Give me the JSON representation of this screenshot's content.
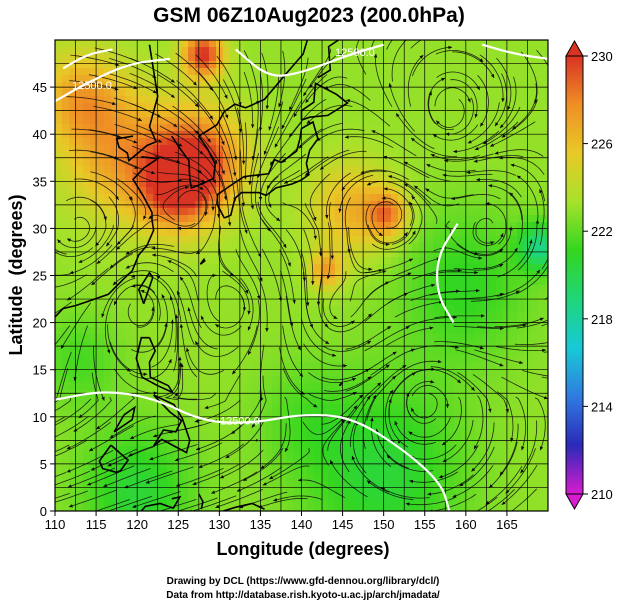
{
  "chart_data": {
    "type": "heatmap",
    "title": "GSM 06Z10Aug2023 (200.0hPa)",
    "xlabel": "Longitude (degrees)",
    "ylabel": "Latitude  (degrees)",
    "xlim": [
      110,
      170
    ],
    "ylim": [
      0,
      50
    ],
    "xticks": [
      "110",
      "115",
      "120",
      "125",
      "130",
      "135",
      "140",
      "145",
      "150",
      "155",
      "160",
      "165"
    ],
    "yticks": [
      "0",
      "5",
      "10",
      "15",
      "20",
      "25",
      "30",
      "35",
      "40",
      "45"
    ],
    "grid": true,
    "grid_step_degrees": 2.5,
    "colorbar": {
      "min": 210,
      "max": 230,
      "ticks": [
        "210",
        "214",
        "218",
        "222",
        "226",
        "230"
      ],
      "colors": [
        "#d91bd0",
        "#2a2ab8",
        "#2f7be0",
        "#18c9d6",
        "#1fd67a",
        "#33d61f",
        "#a6e22a",
        "#e9c927",
        "#ef8f25",
        "#d93323"
      ]
    },
    "temperature_field": {
      "background": 223,
      "features": [
        {
          "lon": 127.5,
          "lat": 37.0,
          "value": 229.5,
          "r": 5.5
        },
        {
          "lon": 124.5,
          "lat": 34.0,
          "value": 227.5,
          "r": 4.5
        },
        {
          "lon": 128.0,
          "lat": 48.5,
          "value": 230.0,
          "r": 2.5
        },
        {
          "lon": 118.0,
          "lat": 38.0,
          "value": 227.0,
          "r": 7.0
        },
        {
          "lon": 113.0,
          "lat": 44.0,
          "value": 226.5,
          "r": 5.0
        },
        {
          "lon": 146.0,
          "lat": 32.0,
          "value": 226.5,
          "r": 5.0
        },
        {
          "lon": 150.5,
          "lat": 31.5,
          "value": 227.5,
          "r": 2.5
        },
        {
          "lon": 143.0,
          "lat": 25.5,
          "value": 227.0,
          "r": 2.0
        },
        {
          "lon": 160.0,
          "lat": 24.0,
          "value": 221.0,
          "r": 8.0
        },
        {
          "lon": 169.0,
          "lat": 28.0,
          "value": 219.0,
          "r": 2.5
        },
        {
          "lon": 150.0,
          "lat": 4.0,
          "value": 220.5,
          "r": 10.0
        },
        {
          "lon": 120.0,
          "lat": 2.0,
          "value": 220.5,
          "r": 7.0
        },
        {
          "lon": 113.0,
          "lat": 16.0,
          "value": 221.5,
          "r": 5.0
        },
        {
          "lon": 140.0,
          "lat": 10.0,
          "value": 222.0,
          "r": 6.0
        }
      ]
    },
    "height_contours": {
      "color": "#ffffff",
      "labels": [
        "12500.0"
      ],
      "lines": [
        [
          [
            110.0,
            11.8
          ],
          [
            116.0,
            12.8
          ],
          [
            122.0,
            12.0
          ],
          [
            128.0,
            9.5
          ],
          [
            134.0,
            9.3
          ],
          [
            140.0,
            10.3
          ],
          [
            146.0,
            10.0
          ],
          [
            152.0,
            6.8
          ],
          [
            157.0,
            3.0
          ],
          [
            158.0,
            0.0
          ]
        ],
        [
          [
            158.5,
            20.0
          ],
          [
            156.5,
            23.0
          ],
          [
            156.5,
            27.0
          ],
          [
            159.0,
            30.5
          ]
        ],
        [
          [
            110.0,
            43.5
          ],
          [
            114.0,
            45.5
          ],
          [
            119.0,
            47.5
          ],
          [
            124.0,
            48.0
          ]
        ],
        [
          [
            132.0,
            49.0
          ],
          [
            136.0,
            46.0
          ],
          [
            140.0,
            46.5
          ],
          [
            146.0,
            48.5
          ],
          [
            150.0,
            49.5
          ]
        ],
        [
          [
            111.0,
            47.0
          ],
          [
            114.0,
            48.5
          ],
          [
            117.0,
            49.0
          ]
        ],
        [
          [
            162.0,
            49.5
          ],
          [
            166.0,
            48.5
          ],
          [
            170.0,
            48.0
          ]
        ]
      ]
    },
    "credits": [
      "Drawing by DCL (https://www.gfd-dennou.org/library/dcl/)",
      "Data from http://database.rish.kyoto-u.ac.jp/arch/jmadata/"
    ]
  }
}
